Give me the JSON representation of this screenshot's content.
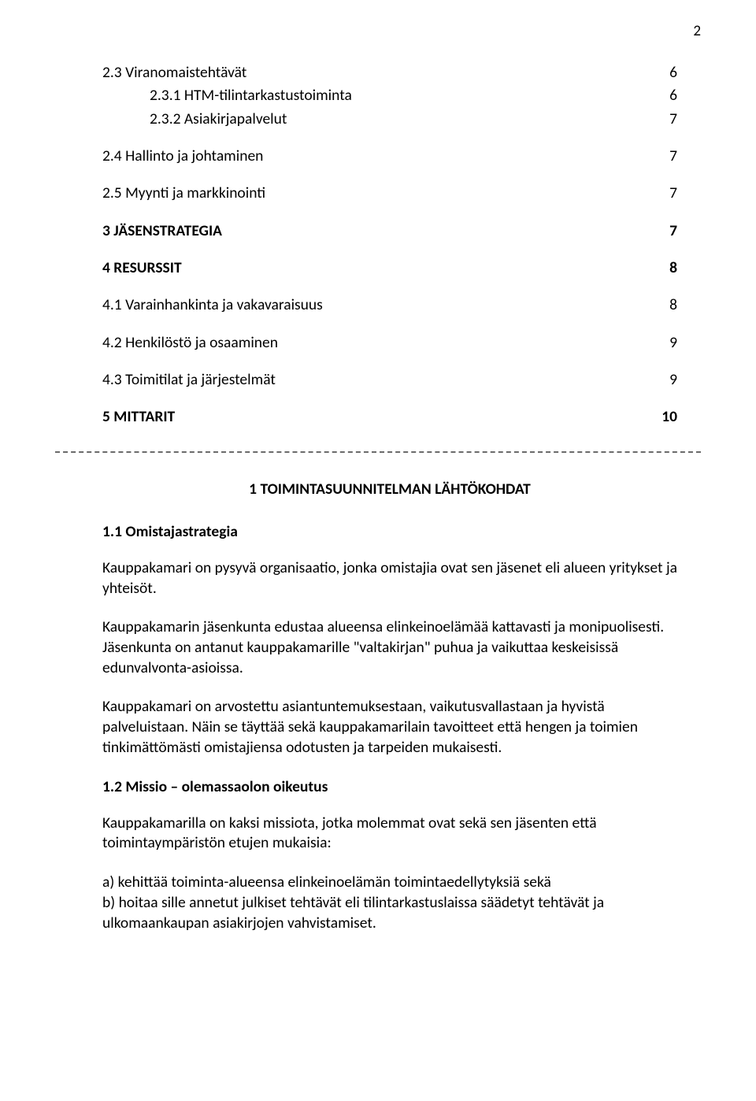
{
  "page_number": "2",
  "toc": [
    {
      "label": "2.3 Viranomaistehtävät",
      "page": "6",
      "indent": 0,
      "bold": false
    },
    {
      "label": "2.3.1 HTM-tilintarkastustoiminta",
      "page": "6",
      "indent": 1,
      "bold": false
    },
    {
      "label": "2.3.2 Asiakirjapalvelut",
      "page": "7",
      "indent": 1,
      "bold": false
    },
    {
      "gap": true
    },
    {
      "label": "2.4 Hallinto ja johtaminen",
      "page": "7",
      "indent": 0,
      "bold": false
    },
    {
      "gap": true
    },
    {
      "label": "2.5 Myynti ja markkinointi",
      "page": "7",
      "indent": 0,
      "bold": false
    },
    {
      "gap": true
    },
    {
      "label": "3  JÄSENSTRATEGIA",
      "page": "7",
      "indent": 0,
      "bold": true
    },
    {
      "gap": true
    },
    {
      "label": "4  RESURSSIT",
      "page": "8",
      "indent": 0,
      "bold": true
    },
    {
      "gap": true
    },
    {
      "label": "4.1 Varainhankinta ja vakavaraisuus",
      "page": "8",
      "indent": 0,
      "bold": false
    },
    {
      "gap": true
    },
    {
      "label": "4.2 Henkilöstö ja osaaminen",
      "page": "9",
      "indent": 0,
      "bold": false
    },
    {
      "gap": true
    },
    {
      "label": "4.3 Toimitilat ja järjestelmät",
      "page": "9",
      "indent": 0,
      "bold": false
    },
    {
      "gap": true
    },
    {
      "label": "5  MITTARIT",
      "page": "10",
      "indent": 0,
      "bold": true
    }
  ],
  "section_heading": "1  TOIMINTASUUNNITELMAN LÄHTÖKOHDAT",
  "sub_heading_1": "1.1 Omistajastrategia",
  "para_1": "Kauppakamari on pysyvä organisaatio, jonka omistajia ovat sen jäsenet eli alueen yritykset ja yhteisöt.",
  "para_2": "Kauppakamarin jäsenkunta edustaa alueensa elinkeinoelämää kattavasti ja monipuolisesti. Jäsenkunta on antanut kauppakamarille \"valtakirjan\" puhua ja vaikuttaa keskeisissä edunvalvonta-asioissa.",
  "para_3": "Kauppakamari on arvostettu asiantuntemuksestaan, vaikutusvallastaan ja hyvistä palveluistaan. Näin se täyttää sekä kauppakamarilain tavoitteet että hengen ja toimien tinkimättömästi omistajiensa odotusten ja tarpeiden mukaisesti.",
  "sub_heading_2": "1.2 Missio – olemassaolon oikeutus",
  "para_4": "Kauppakamarilla on kaksi missiota, jotka molemmat ovat sekä sen jäsenten että toimintaympäristön etujen mukaisia:",
  "para_5": "a) kehittää toiminta-alueensa elinkeinoelämän toimintaedellytyksiä sekä\nb) hoitaa sille annetut julkiset tehtävät eli tilintarkastuslaissa säädetyt tehtävät ja ulkomaankaupan asiakirjojen vahvistamiset.",
  "colors": {
    "text": "#000000",
    "background": "#ffffff",
    "dash": "#6b6b6b"
  },
  "typography": {
    "body_fontsize_pt": 14,
    "heading_fontsize_pt": 14,
    "font_family": "Calibri"
  }
}
